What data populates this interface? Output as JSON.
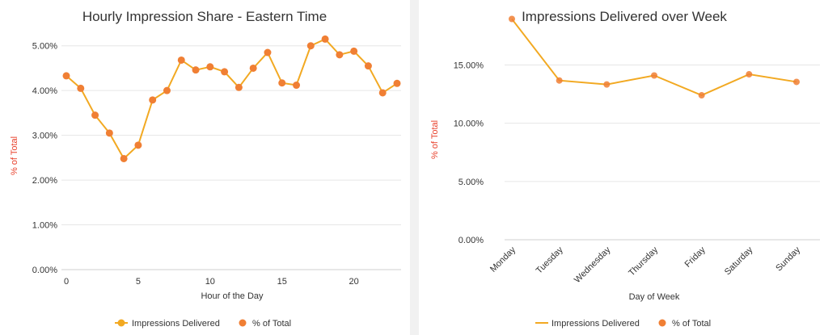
{
  "colors": {
    "line": "#f2a922",
    "marker": "#f07f34",
    "ylabel": "#e8412c"
  },
  "chart_data": [
    {
      "type": "line",
      "title": "Hourly Impression Share - Eastern Time",
      "xlabel": "Hour of the Day",
      "ylabel": "% of Total",
      "x": [
        0,
        1,
        2,
        3,
        4,
        5,
        6,
        7,
        8,
        9,
        10,
        11,
        12,
        13,
        14,
        15,
        16,
        17,
        18,
        19,
        20,
        21,
        22,
        23
      ],
      "xlim": [
        0,
        23
      ],
      "x_ticks": [
        0,
        5,
        10,
        15,
        20
      ],
      "x_tick_labels": [
        "0",
        "5",
        "10",
        "15",
        "20"
      ],
      "ylim": [
        0,
        5.5
      ],
      "y_ticks": [
        0,
        1,
        2,
        3,
        4,
        5
      ],
      "y_tick_labels": [
        "0.00%",
        "1.00%",
        "2.00%",
        "3.00%",
        "4.00%",
        "5.00%"
      ],
      "grid": true,
      "series": [
        {
          "name": "Impressions Delivered",
          "values": [
            4.33,
            4.05,
            3.45,
            3.05,
            2.48,
            2.78,
            3.79,
            4.0,
            4.68,
            4.46,
            4.53,
            4.42,
            4.07,
            4.5,
            4.85,
            4.17,
            4.12,
            5.0,
            5.15,
            4.8,
            4.88,
            4.55,
            3.95,
            4.16
          ]
        }
      ],
      "legend": {
        "position": "bottom",
        "entries": [
          "Impressions Delivered",
          "% of Total"
        ]
      }
    },
    {
      "type": "line",
      "title": "Impressions Delivered over Week",
      "xlabel": "Day of Week",
      "ylabel": "% of Total",
      "categories": [
        "Monday",
        "Tuesday",
        "Wednesday",
        "Thursday",
        "Friday",
        "Saturday",
        "Sunday"
      ],
      "ylim": [
        0,
        18.5
      ],
      "y_ticks": [
        0,
        5,
        10,
        15
      ],
      "y_tick_labels": [
        "0.00%",
        "5.00%",
        "10.00%",
        "15.00%"
      ],
      "grid": true,
      "series": [
        {
          "name": "Impressions Delivered",
          "values": [
            18.95,
            13.67,
            13.33,
            14.1,
            12.4,
            14.2,
            13.55
          ]
        }
      ],
      "legend": {
        "position": "bottom",
        "entries": [
          "Impressions Delivered",
          "% of Total"
        ]
      }
    }
  ]
}
